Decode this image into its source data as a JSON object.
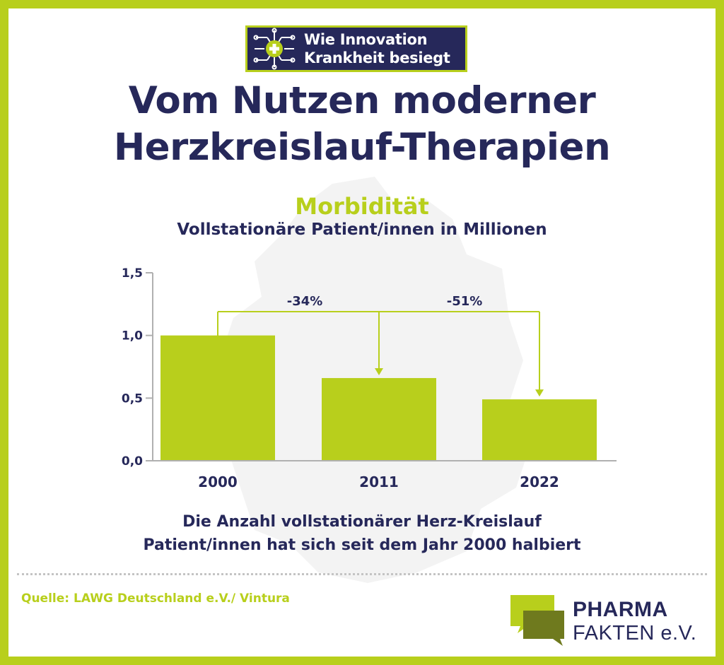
{
  "badge": {
    "line1": "Wie Innovation",
    "line2": "Krankheit besiegt",
    "icon": "circuit-plus-icon"
  },
  "title": {
    "line1": "Vom Nutzen moderner",
    "line2": "Herzkreislauf-Therapien"
  },
  "subtitle_accent": "Morbidität",
  "subtitle": "Vollstationäre Patient/innen in Millionen",
  "caption": {
    "line1": "Die Anzahl vollstationärer Herz-Kreislauf",
    "line2": "Patient/innen hat sich seit dem Jahr 2000 halbiert"
  },
  "source": "Quelle: LAWG Deutschland e.V./ Vintura",
  "logo": {
    "line1": "PHARMA",
    "line2": "FAKTEN e.V."
  },
  "colors": {
    "accent": "#b8cf1c",
    "navy": "#26285a",
    "axis": "#b0b0b0"
  },
  "chart_data": {
    "type": "bar",
    "categories": [
      "2000",
      "2011",
      "2022"
    ],
    "values": [
      1.0,
      0.66,
      0.49
    ],
    "title": "Morbidität",
    "subtitle": "Vollstationäre Patient/innen in Millionen",
    "xlabel": "",
    "ylabel": "",
    "ylim": [
      0,
      1.5
    ],
    "yticks": [
      0,
      0.5,
      1.0,
      1.5
    ],
    "ytick_labels": [
      "0,0",
      "0,5",
      "1,0",
      "1,5"
    ],
    "grid": false,
    "annotations": [
      {
        "from": "2000",
        "to": "2011",
        "label": "-34%"
      },
      {
        "from": "2000",
        "to": "2022",
        "label": "-51%"
      }
    ]
  }
}
